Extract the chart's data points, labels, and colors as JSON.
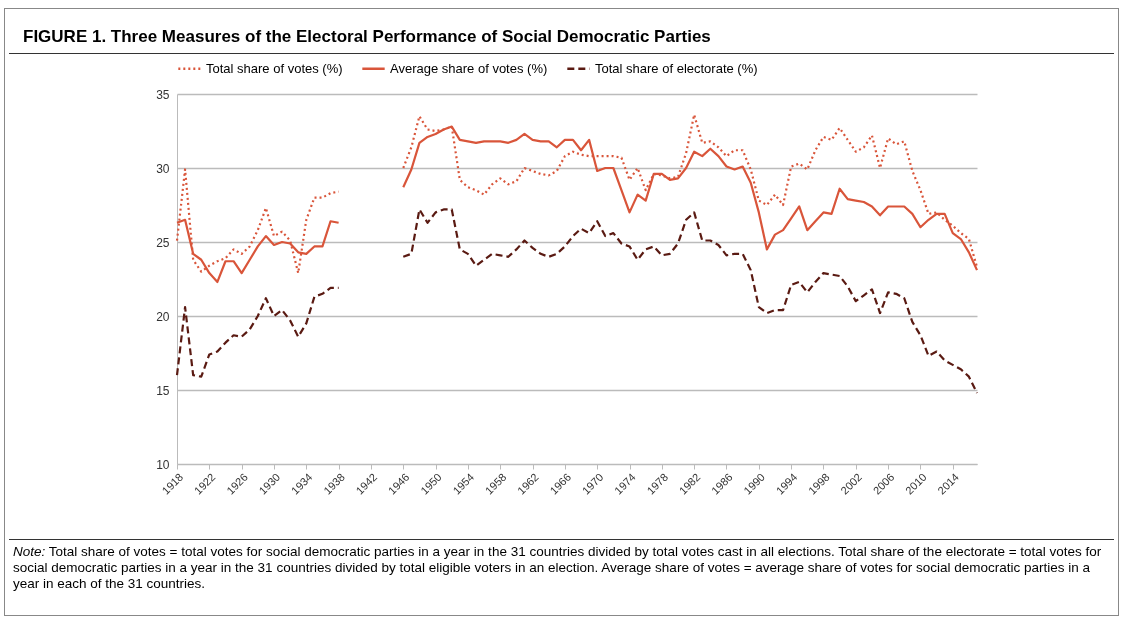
{
  "chart_data": {
    "type": "line",
    "title": "FIGURE 1.   Three Measures of the Electoral Performance of Social Democratic Parties",
    "x": [
      1918,
      1919,
      1920,
      1921,
      1922,
      1923,
      1924,
      1925,
      1926,
      1927,
      1928,
      1929,
      1930,
      1931,
      1932,
      1933,
      1934,
      1935,
      1936,
      1937,
      1938,
      1939,
      1940,
      1941,
      1942,
      1943,
      1944,
      1945,
      1946,
      1947,
      1948,
      1949,
      1950,
      1951,
      1952,
      1953,
      1954,
      1955,
      1956,
      1957,
      1958,
      1959,
      1960,
      1961,
      1962,
      1963,
      1964,
      1965,
      1966,
      1967,
      1968,
      1969,
      1970,
      1971,
      1972,
      1973,
      1974,
      1975,
      1976,
      1977,
      1978,
      1979,
      1980,
      1981,
      1982,
      1983,
      1984,
      1985,
      1986,
      1987,
      1988,
      1989,
      1990,
      1991,
      1992,
      1993,
      1994,
      1995,
      1996,
      1997,
      1998,
      1999,
      2000,
      2001,
      2002,
      2003,
      2004,
      2005,
      2006,
      2007,
      2008,
      2009,
      2010,
      2011,
      2012,
      2013,
      2014,
      2015,
      2016,
      2017
    ],
    "series": [
      {
        "name": "Total share of votes (%)",
        "color": "#d9553a",
        "line_style": "dotted",
        "values": [
          25.1,
          29.9,
          23.8,
          23.0,
          23.4,
          23.7,
          23.9,
          24.5,
          24.2,
          24.7,
          25.8,
          27.3,
          25.4,
          25.7,
          25.1,
          22.9,
          26.5,
          28.0,
          28.0,
          28.3,
          28.4,
          null,
          null,
          null,
          null,
          null,
          null,
          null,
          30.0,
          31.4,
          33.5,
          32.6,
          32.5,
          32.6,
          32.8,
          29.2,
          28.7,
          28.5,
          28.2,
          28.9,
          29.3,
          28.9,
          29.1,
          30.0,
          29.8,
          29.6,
          29.5,
          29.8,
          30.8,
          31.1,
          30.9,
          30.8,
          30.8,
          30.8,
          30.8,
          30.7,
          29.2,
          30.0,
          28.5,
          29.6,
          29.5,
          29.3,
          29.4,
          31.0,
          33.6,
          31.7,
          31.8,
          31.4,
          30.8,
          31.2,
          31.2,
          29.9,
          27.8,
          27.5,
          28.2,
          27.5,
          30.1,
          30.3,
          29.9,
          31.2,
          32.1,
          31.9,
          32.7,
          31.9,
          31.1,
          31.4,
          32.2,
          30.0,
          32.0,
          31.6,
          31.8,
          29.8,
          28.5,
          26.9,
          27.0,
          26.5,
          26.1,
          25.6,
          25.2,
          23.3
        ]
      },
      {
        "name": "Average share of votes (%)",
        "color": "#d9553a",
        "line_style": "solid",
        "values": [
          26.3,
          26.5,
          24.2,
          23.8,
          22.9,
          22.3,
          23.7,
          23.7,
          22.9,
          23.8,
          24.7,
          25.4,
          24.8,
          25.0,
          24.9,
          24.3,
          24.2,
          24.7,
          24.7,
          26.4,
          26.3,
          null,
          null,
          null,
          null,
          null,
          null,
          null,
          28.7,
          29.9,
          31.7,
          32.1,
          32.3,
          32.6,
          32.8,
          31.9,
          31.8,
          31.7,
          31.8,
          31.8,
          31.8,
          31.7,
          31.9,
          32.3,
          31.9,
          31.8,
          31.8,
          31.4,
          31.9,
          31.9,
          31.2,
          31.9,
          29.8,
          30.0,
          30.0,
          28.5,
          27.0,
          28.2,
          27.8,
          29.6,
          29.6,
          29.2,
          29.3,
          30.0,
          31.1,
          30.8,
          31.3,
          30.8,
          30.1,
          29.9,
          30.1,
          29.0,
          27.0,
          24.5,
          25.5,
          25.8,
          26.6,
          27.4,
          25.8,
          26.4,
          27.0,
          26.9,
          28.6,
          27.9,
          27.8,
          27.7,
          27.4,
          26.8,
          27.4,
          27.4,
          27.4,
          26.9,
          26.0,
          26.5,
          26.9,
          26.9,
          25.6,
          25.2,
          24.3,
          23.1
        ]
      },
      {
        "name": "Total share of electorate (%)",
        "color": "#5a1a12",
        "line_style": "dashed",
        "values": [
          16.0,
          20.6,
          16.0,
          15.9,
          17.4,
          17.6,
          18.2,
          18.7,
          18.6,
          19.1,
          20.0,
          21.2,
          20.0,
          20.4,
          19.7,
          18.6,
          19.5,
          21.3,
          21.5,
          21.9,
          21.9,
          null,
          null,
          null,
          null,
          null,
          null,
          null,
          24.0,
          24.2,
          27.2,
          26.3,
          27.0,
          27.2,
          27.2,
          24.5,
          24.2,
          23.4,
          23.8,
          24.2,
          24.1,
          24.0,
          24.5,
          25.1,
          24.6,
          24.2,
          24.0,
          24.2,
          24.7,
          25.4,
          25.9,
          25.6,
          26.4,
          25.4,
          25.6,
          24.9,
          24.7,
          23.8,
          24.5,
          24.7,
          24.1,
          24.2,
          24.9,
          26.5,
          27.0,
          25.1,
          25.1,
          24.8,
          24.1,
          24.2,
          24.2,
          23.1,
          20.6,
          20.2,
          20.4,
          20.4,
          22.1,
          22.3,
          21.6,
          22.3,
          22.9,
          22.8,
          22.7,
          22.0,
          21.0,
          21.4,
          21.8,
          20.2,
          21.6,
          21.5,
          21.2,
          19.6,
          18.7,
          17.3,
          17.6,
          17.0,
          16.7,
          16.4,
          15.9,
          14.8
        ]
      }
    ],
    "xlim": [
      1918,
      2017
    ],
    "xticks": [
      1918,
      1922,
      1926,
      1930,
      1934,
      1938,
      1942,
      1946,
      1950,
      1954,
      1958,
      1962,
      1966,
      1970,
      1974,
      1978,
      1982,
      1986,
      1990,
      1994,
      1998,
      2002,
      2006,
      2010,
      2014
    ],
    "ylim": [
      10,
      35
    ],
    "yticks": [
      10,
      15,
      20,
      25,
      30,
      35
    ],
    "grid": "y",
    "legend": "top",
    "marker": "none",
    "annotations": [
      "Note:",
      "Total share of votes = total votes for social democratic parties in a year in the 31 countries divided by total votes cast in all elections. Total share of the electorate = total votes for social democratic parties in a year in the 31 countries divided by total eligible voters in an election. Average share of votes = average share of votes for social democratic parties in a year in each of the 31 countries."
    ]
  }
}
